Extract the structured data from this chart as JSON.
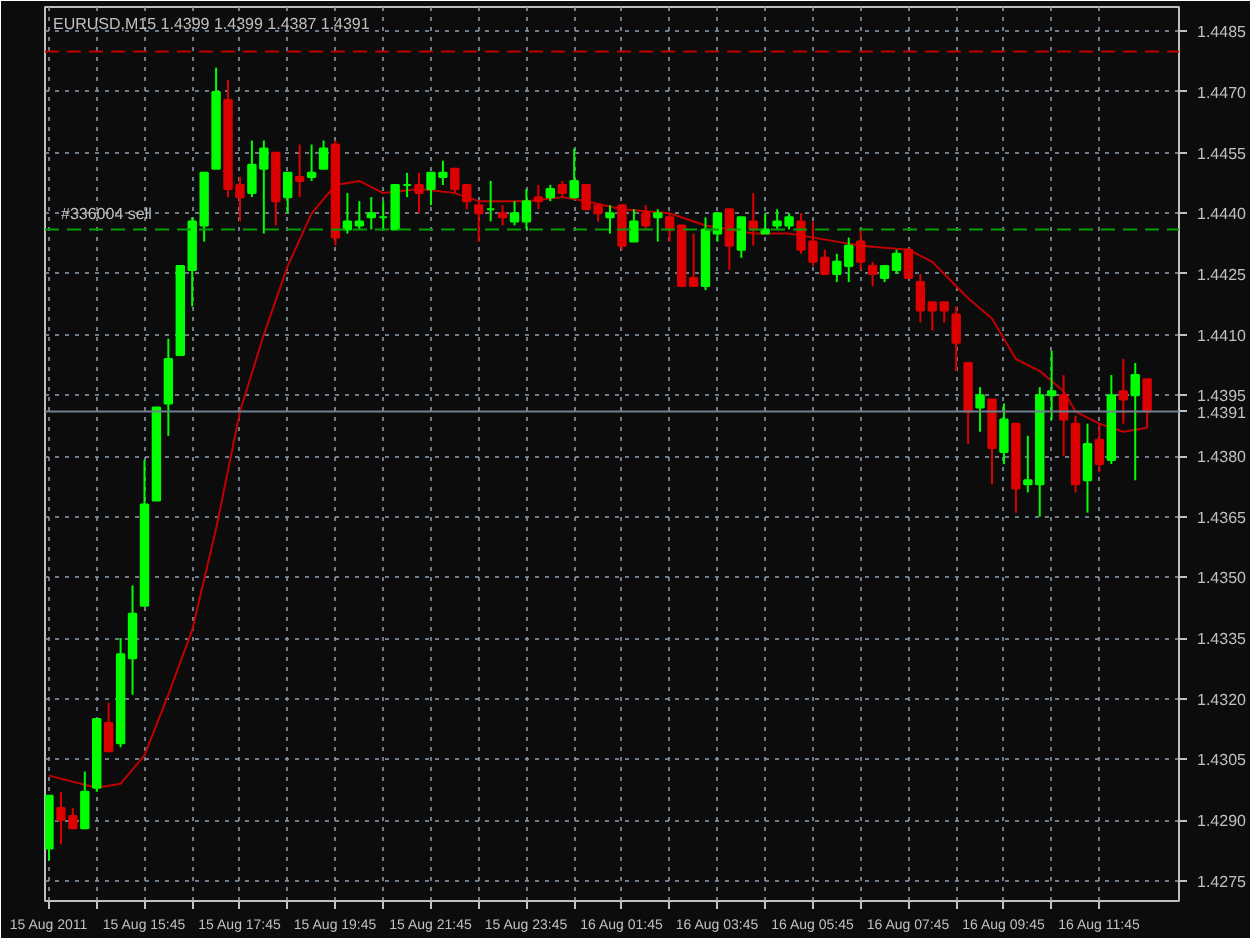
{
  "chart_data": {
    "type": "candlestick",
    "title": "EURUSD,M15  1.4399 1.4399 1.4387 1.4391",
    "x": [
      "2011-08-15T13:45",
      "2011-08-15T14:00",
      "2011-08-15T14:15",
      "2011-08-15T14:30",
      "2011-08-15T14:45",
      "2011-08-15T15:00",
      "2011-08-15T15:15",
      "2011-08-15T15:30",
      "2011-08-15T15:45",
      "2011-08-15T16:00",
      "2011-08-15T16:15",
      "2011-08-15T16:30",
      "2011-08-15T16:45",
      "2011-08-15T17:00",
      "2011-08-15T17:15",
      "2011-08-15T17:30",
      "2011-08-15T17:45",
      "2011-08-15T18:00",
      "2011-08-15T18:15",
      "2011-08-15T18:30",
      "2011-08-15T18:45",
      "2011-08-15T19:00",
      "2011-08-15T19:15",
      "2011-08-15T19:30",
      "2011-08-15T19:45",
      "2011-08-15T20:00",
      "2011-08-15T20:15",
      "2011-08-15T20:30",
      "2011-08-15T20:45",
      "2011-08-15T21:00",
      "2011-08-15T21:15",
      "2011-08-15T21:30",
      "2011-08-15T21:45",
      "2011-08-15T22:00",
      "2011-08-15T22:15",
      "2011-08-15T22:30",
      "2011-08-15T22:45",
      "2011-08-15T23:00",
      "2011-08-15T23:15",
      "2011-08-15T23:30",
      "2011-08-15T23:45",
      "2011-08-16T00:00",
      "2011-08-16T00:15",
      "2011-08-16T00:30",
      "2011-08-16T00:45",
      "2011-08-16T01:00",
      "2011-08-16T01:15",
      "2011-08-16T01:30",
      "2011-08-16T01:45",
      "2011-08-16T02:00",
      "2011-08-16T02:15",
      "2011-08-16T02:30",
      "2011-08-16T02:45",
      "2011-08-16T03:00",
      "2011-08-16T03:15",
      "2011-08-16T03:30",
      "2011-08-16T03:45",
      "2011-08-16T04:00",
      "2011-08-16T04:15",
      "2011-08-16T04:30",
      "2011-08-16T04:45",
      "2011-08-16T05:00",
      "2011-08-16T05:15",
      "2011-08-16T05:30",
      "2011-08-16T05:45",
      "2011-08-16T06:00",
      "2011-08-16T06:15",
      "2011-08-16T06:30",
      "2011-08-16T06:45",
      "2011-08-16T07:00",
      "2011-08-16T07:15",
      "2011-08-16T07:30",
      "2011-08-16T07:45",
      "2011-08-16T08:00",
      "2011-08-16T08:15",
      "2011-08-16T08:30",
      "2011-08-16T08:45",
      "2011-08-16T09:00",
      "2011-08-16T09:15",
      "2011-08-16T09:30",
      "2011-08-16T09:45",
      "2011-08-16T10:00",
      "2011-08-16T10:15",
      "2011-08-16T10:30",
      "2011-08-16T10:45",
      "2011-08-16T11:00",
      "2011-08-16T11:15",
      "2011-08-16T11:30",
      "2011-08-16T11:45",
      "2011-08-16T12:00",
      "2011-08-16T12:15",
      "2011-08-16T12:30",
      "2011-08-16T12:45"
    ],
    "ohlc": [
      [
        1.4283,
        1.4296,
        1.428,
        1.4296
      ],
      [
        1.4293,
        1.4297,
        1.4284,
        1.429
      ],
      [
        1.4291,
        1.4293,
        1.4288,
        1.4288
      ],
      [
        1.4288,
        1.4302,
        1.4288,
        1.4297
      ],
      [
        1.4298,
        1.4315,
        1.4297,
        1.4315
      ],
      [
        1.4314,
        1.4319,
        1.4307,
        1.4307
      ],
      [
        1.4309,
        1.4335,
        1.4308,
        1.4331
      ],
      [
        1.433,
        1.4348,
        1.4321,
        1.4341
      ],
      [
        1.4343,
        1.4379,
        1.4343,
        1.4368
      ],
      [
        1.4369,
        1.4392,
        1.4369,
        1.4392
      ],
      [
        1.4393,
        1.4409,
        1.4385,
        1.4404
      ],
      [
        1.4405,
        1.4427,
        1.4405,
        1.4427
      ],
      [
        1.4426,
        1.4439,
        1.4417,
        1.4438
      ],
      [
        1.4437,
        1.445,
        1.4433,
        1.445
      ],
      [
        1.4451,
        1.4476,
        1.4451,
        1.447
      ],
      [
        1.4468,
        1.4473,
        1.4444,
        1.4446
      ],
      [
        1.4447,
        1.4449,
        1.4438,
        1.4444
      ],
      [
        1.4445,
        1.4458,
        1.4444,
        1.4452
      ],
      [
        1.4451,
        1.4458,
        1.4435,
        1.4456
      ],
      [
        1.4455,
        1.4455,
        1.4437,
        1.4443
      ],
      [
        1.4444,
        1.445,
        1.444,
        1.445
      ],
      [
        1.4449,
        1.4457,
        1.4444,
        1.4448
      ],
      [
        1.4449,
        1.4457,
        1.4448,
        1.445
      ],
      [
        1.4451,
        1.4458,
        1.4451,
        1.4456
      ],
      [
        1.4457,
        1.4458,
        1.4432,
        1.4434
      ],
      [
        1.4436,
        1.4445,
        1.4435,
        1.4438
      ],
      [
        1.4437,
        1.4443,
        1.4436,
        1.4438
      ],
      [
        1.4439,
        1.4444,
        1.4436,
        1.444
      ],
      [
        1.4439,
        1.4443,
        1.4436,
        1.4439
      ],
      [
        1.4436,
        1.4447,
        1.4436,
        1.4447
      ],
      [
        1.4447,
        1.445,
        1.4444,
        1.4447
      ],
      [
        1.4447,
        1.445,
        1.444,
        1.4445
      ],
      [
        1.4446,
        1.445,
        1.4442,
        1.445
      ],
      [
        1.4449,
        1.4453,
        1.4447,
        1.445
      ],
      [
        1.4451,
        1.4451,
        1.4445,
        1.4446
      ],
      [
        1.4447,
        1.4447,
        1.4441,
        1.4443
      ],
      [
        1.4442,
        1.4443,
        1.4433,
        1.444
      ],
      [
        1.4441,
        1.4448,
        1.4438,
        1.4441
      ],
      [
        1.444,
        1.4442,
        1.4437,
        1.4439
      ],
      [
        1.4438,
        1.4443,
        1.4437,
        1.444
      ],
      [
        1.4438,
        1.4446,
        1.4436,
        1.4443
      ],
      [
        1.4444,
        1.4447,
        1.4441,
        1.4443
      ],
      [
        1.4444,
        1.4447,
        1.4443,
        1.4446
      ],
      [
        1.4447,
        1.4448,
        1.4444,
        1.4445
      ],
      [
        1.4444,
        1.4456,
        1.4444,
        1.4448
      ],
      [
        1.4447,
        1.4447,
        1.4441,
        1.4441
      ],
      [
        1.4442,
        1.4442,
        1.4438,
        1.444
      ],
      [
        1.4439,
        1.4442,
        1.4435,
        1.444
      ],
      [
        1.4442,
        1.4442,
        1.4431,
        1.4432
      ],
      [
        1.4433,
        1.4441,
        1.4433,
        1.4438
      ],
      [
        1.444,
        1.4442,
        1.4436,
        1.4437
      ],
      [
        1.4439,
        1.4441,
        1.4433,
        1.444
      ],
      [
        1.4439,
        1.444,
        1.4433,
        1.4436
      ],
      [
        1.4437,
        1.4437,
        1.4422,
        1.4422
      ],
      [
        1.4424,
        1.4435,
        1.4422,
        1.4422
      ],
      [
        1.4422,
        1.4439,
        1.4421,
        1.4436
      ],
      [
        1.4435,
        1.444,
        1.4433,
        1.444
      ],
      [
        1.4441,
        1.4441,
        1.4426,
        1.4432
      ],
      [
        1.4431,
        1.4439,
        1.4429,
        1.4439
      ],
      [
        1.4438,
        1.4445,
        1.4432,
        1.4436
      ],
      [
        1.4435,
        1.444,
        1.4435,
        1.4436
      ],
      [
        1.4437,
        1.4441,
        1.4436,
        1.4438
      ],
      [
        1.4437,
        1.444,
        1.4436,
        1.4439
      ],
      [
        1.4438,
        1.444,
        1.443,
        1.4431
      ],
      [
        1.4433,
        1.4438,
        1.4427,
        1.4428
      ],
      [
        1.4429,
        1.4431,
        1.4425,
        1.4425
      ],
      [
        1.4425,
        1.443,
        1.4423,
        1.4428
      ],
      [
        1.4427,
        1.4434,
        1.4423,
        1.4432
      ],
      [
        1.4433,
        1.4436,
        1.4426,
        1.4428
      ],
      [
        1.4427,
        1.4428,
        1.4422,
        1.4425
      ],
      [
        1.4424,
        1.4427,
        1.4423,
        1.4427
      ],
      [
        1.4426,
        1.4431,
        1.4425,
        1.443
      ],
      [
        1.4431,
        1.4431,
        1.4424,
        1.4424
      ],
      [
        1.4423,
        1.4425,
        1.4413,
        1.4416
      ],
      [
        1.4418,
        1.4418,
        1.4411,
        1.4416
      ],
      [
        1.4418,
        1.4418,
        1.4413,
        1.4416
      ],
      [
        1.4415,
        1.4417,
        1.4401,
        1.4408
      ],
      [
        1.4403,
        1.4403,
        1.4383,
        1.4391
      ],
      [
        1.4392,
        1.4397,
        1.4386,
        1.4395
      ],
      [
        1.4394,
        1.4394,
        1.4373,
        1.4382
      ],
      [
        1.4381,
        1.4393,
        1.4378,
        1.4389
      ],
      [
        1.4388,
        1.4388,
        1.4366,
        1.4372
      ],
      [
        1.4373,
        1.4385,
        1.4371,
        1.4374
      ],
      [
        1.4373,
        1.4397,
        1.4365,
        1.4395
      ],
      [
        1.4395,
        1.4406,
        1.4389,
        1.4396
      ],
      [
        1.4395,
        1.44,
        1.438,
        1.4389
      ],
      [
        1.4388,
        1.439,
        1.4371,
        1.4373
      ],
      [
        1.4374,
        1.4388,
        1.4366,
        1.4383
      ],
      [
        1.4384,
        1.4388,
        1.4376,
        1.4378
      ],
      [
        1.4379,
        1.44,
        1.4378,
        1.4395
      ],
      [
        1.4396,
        1.4404,
        1.4388,
        1.4394
      ],
      [
        1.4395,
        1.4403,
        1.4374,
        1.44
      ],
      [
        1.4399,
        1.4399,
        1.4387,
        1.4391
      ]
    ],
    "colors": [
      "#00ff00",
      "#dd0000",
      "#dd0000",
      "#00ff00",
      "#00ff00",
      "#dd0000",
      "#00ff00",
      "#00ff00",
      "#00ff00",
      "#00ff00",
      "#00ff00",
      "#00ff00",
      "#00ff00",
      "#00ff00",
      "#00ff00",
      "#dd0000",
      "#dd0000",
      "#00ff00",
      "#00ff00",
      "#dd0000",
      "#00ff00",
      "#dd0000",
      "#00ff00",
      "#00ff00",
      "#dd0000",
      "#00ff00",
      "#00ff00",
      "#00ff00",
      "#00ff00",
      "#00ff00",
      "#00ff00",
      "#dd0000",
      "#00ff00",
      "#00ff00",
      "#dd0000",
      "#dd0000",
      "#dd0000",
      "#00ff00",
      "#dd0000",
      "#00ff00",
      "#00ff00",
      "#dd0000",
      "#00ff00",
      "#dd0000",
      "#00ff00",
      "#dd0000",
      "#dd0000",
      "#00ff00",
      "#dd0000",
      "#00ff00",
      "#dd0000",
      "#00ff00",
      "#dd0000",
      "#dd0000",
      "#dd0000",
      "#00ff00",
      "#00ff00",
      "#dd0000",
      "#00ff00",
      "#dd0000",
      "#00ff00",
      "#00ff00",
      "#00ff00",
      "#dd0000",
      "#dd0000",
      "#dd0000",
      "#00ff00",
      "#00ff00",
      "#dd0000",
      "#dd0000",
      "#00ff00",
      "#00ff00",
      "#dd0000",
      "#dd0000",
      "#dd0000",
      "#dd0000",
      "#dd0000",
      "#dd0000",
      "#00ff00",
      "#dd0000",
      "#00ff00",
      "#dd0000",
      "#00ff00",
      "#00ff00",
      "#00ff00",
      "#dd0000",
      "#dd0000",
      "#00ff00",
      "#dd0000",
      "#00ff00",
      "#dd0000",
      "#00ff00",
      "#dd0000"
    ],
    "series": [
      {
        "type": "line",
        "color": "#c00000",
        "x": [
          "2011-08-15T13:45",
          "2011-08-15T14:45",
          "2011-08-15T15:15",
          "2011-08-15T15:45",
          "2011-08-15T16:15",
          "2011-08-15T16:45",
          "2011-08-15T17:15",
          "2011-08-15T17:45",
          "2011-08-15T18:15",
          "2011-08-15T18:45",
          "2011-08-15T19:15",
          "2011-08-15T19:45",
          "2011-08-15T20:15",
          "2011-08-15T20:45",
          "2011-08-15T21:30",
          "2011-08-15T22:15",
          "2011-08-15T22:45",
          "2011-08-15T23:45",
          "2011-08-16T00:30",
          "2011-08-16T01:00",
          "2011-08-16T01:45",
          "2011-08-16T02:45",
          "2011-08-16T03:30",
          "2011-08-16T04:30",
          "2011-08-16T05:15",
          "2011-08-16T06:15",
          "2011-08-16T06:45",
          "2011-08-16T07:45",
          "2011-08-16T08:15",
          "2011-08-16T08:30",
          "2011-08-16T09:00",
          "2011-08-16T09:30",
          "2011-08-16T10:00",
          "2011-08-16T10:30",
          "2011-08-16T11:00",
          "2011-08-16T11:15",
          "2011-08-16T11:45",
          "2011-08-16T12:15",
          "2011-08-16T12:45"
        ],
        "values": [
          1.4301,
          1.4298,
          1.4299,
          1.4306,
          1.4321,
          1.4337,
          1.4362,
          1.4391,
          1.441,
          1.4427,
          1.444,
          1.4447,
          1.4448,
          1.4445,
          1.4446,
          1.4445,
          1.4443,
          1.4443,
          1.4444,
          1.4443,
          1.4441,
          1.444,
          1.4437,
          1.4435,
          1.4435,
          1.4433,
          1.4432,
          1.4431,
          1.4428,
          1.4425,
          1.4419,
          1.4414,
          1.4404,
          1.4401,
          1.4396,
          1.4391,
          1.4388,
          1.4386,
          1.4387
        ]
      }
    ],
    "xlim": [
      "2011-08-15T13:40",
      "2011-08-16T13:25"
    ],
    "ylim": [
      1.427,
      1.4491
    ],
    "xticks": [
      {
        "value": "2011-08-15T13:45",
        "label": "15 Aug 2011"
      },
      {
        "value": "2011-08-15T14:45",
        "label": null
      },
      {
        "value": "2011-08-15T15:45",
        "label": "15 Aug 15:45"
      },
      {
        "value": "2011-08-15T16:45",
        "label": null
      },
      {
        "value": "2011-08-15T17:45",
        "label": "15 Aug 17:45"
      },
      {
        "value": "2011-08-15T18:45",
        "label": null
      },
      {
        "value": "2011-08-15T19:45",
        "label": "15 Aug 19:45"
      },
      {
        "value": "2011-08-15T20:45",
        "label": null
      },
      {
        "value": "2011-08-15T21:45",
        "label": "15 Aug 21:45"
      },
      {
        "value": "2011-08-15T22:45",
        "label": null
      },
      {
        "value": "2011-08-15T23:45",
        "label": "15 Aug 23:45"
      },
      {
        "value": "2011-08-16T00:45",
        "label": null
      },
      {
        "value": "2011-08-16T01:45",
        "label": "16 Aug 01:45"
      },
      {
        "value": "2011-08-16T02:45",
        "label": null
      },
      {
        "value": "2011-08-16T03:45",
        "label": "16 Aug 03:45"
      },
      {
        "value": "2011-08-16T04:45",
        "label": null
      },
      {
        "value": "2011-08-16T05:45",
        "label": "16 Aug 05:45"
      },
      {
        "value": "2011-08-16T06:45",
        "label": null
      },
      {
        "value": "2011-08-16T07:45",
        "label": "16 Aug 07:45"
      },
      {
        "value": "2011-08-16T08:45",
        "label": null
      },
      {
        "value": "2011-08-16T09:45",
        "label": "16 Aug 09:45"
      },
      {
        "value": "2011-08-16T10:45",
        "label": null
      },
      {
        "value": "2011-08-16T11:45",
        "label": "16 Aug 11:45"
      }
    ],
    "yticks": [
      1.4275,
      {
        "value": 1.429,
        "label": "1.4290"
      },
      1.4305,
      {
        "value": 1.432,
        "label": "1.4320"
      },
      1.4335,
      {
        "value": 1.435,
        "label": "1.4350"
      },
      1.4365,
      {
        "value": 1.438,
        "label": "1.4380"
      },
      1.4395,
      {
        "value": 1.441,
        "label": "1.4410"
      },
      1.4425,
      {
        "value": 1.444,
        "label": "1.4440"
      },
      1.4455,
      {
        "value": 1.447,
        "label": "1.4470"
      },
      1.4485
    ],
    "grid": true,
    "ref_lines": [
      {
        "axis": "y",
        "value": 1.448,
        "color": "#c00000",
        "line_style": "dashed"
      },
      {
        "axis": "y",
        "value": 1.4436,
        "label": "#336004 sell",
        "color": "#00a000",
        "line_style": "dashed"
      },
      {
        "axis": "y",
        "value": 1.4391,
        "label": "1.4391",
        "color": "#708090",
        "line_style": "solid"
      }
    ]
  }
}
